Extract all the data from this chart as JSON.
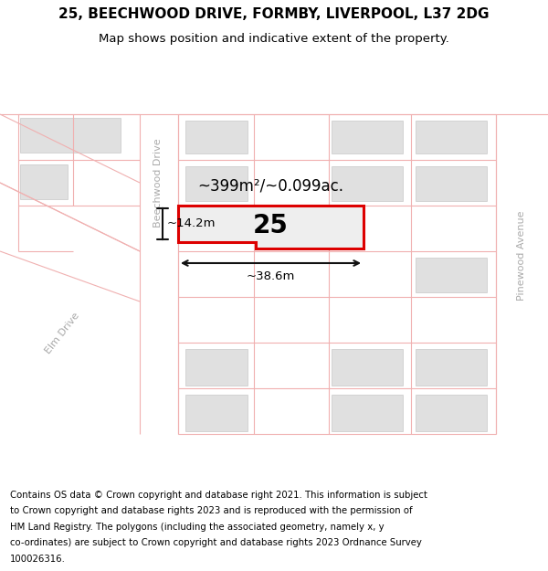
{
  "title_line1": "25, BEECHWOOD DRIVE, FORMBY, LIVERPOOL, L37 2DG",
  "title_line2": "Map shows position and indicative extent of the property.",
  "footer_lines": [
    "Contains OS data © Crown copyright and database right 2021. This information is subject",
    "to Crown copyright and database rights 2023 and is reproduced with the permission of",
    "HM Land Registry. The polygons (including the associated geometry, namely x, y",
    "co-ordinates) are subject to Crown copyright and database rights 2023 Ordnance Survey",
    "100026316."
  ],
  "map_bg": "#f8f4f4",
  "building_fill": "#e0e0e0",
  "building_edge": "#c8c8c8",
  "plot_line_color": "#dd0000",
  "plot_fill": "#eeeeee",
  "road_line_color": "#f0b0b0",
  "road_fill": "#ffffff",
  "dim_color": "#111111",
  "label_25": "25",
  "area_label": "~399m²/~0.099ac.",
  "width_label": "~38.6m",
  "height_label": "~14.2m",
  "street_beechwood": "Beechwood Drive",
  "street_pinewood": "Pinewood Avenue",
  "street_elm": "Elm Drive",
  "title_fontsize": 11,
  "subtitle_fontsize": 9.5,
  "footer_fontsize": 7.3,
  "street_fontsize": 8,
  "area_fontsize": 12,
  "label_fontsize": 20,
  "dim_fontsize": 9.5
}
